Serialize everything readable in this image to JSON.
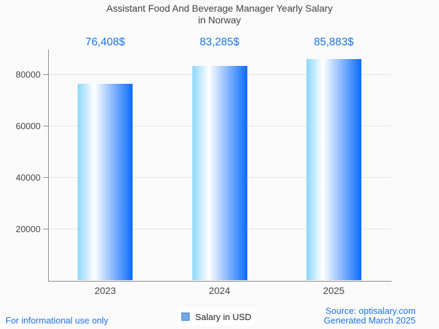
{
  "page": {
    "background": "#fafafa"
  },
  "chart_data": {
    "type": "bar",
    "title": "Assistant Food And Beverage Manager Yearly Salary in Norway",
    "title_lines": [
      "Assistant Food And Beverage Manager Yearly Salary",
      "in Norway"
    ],
    "categories": [
      "2023",
      "2024",
      "2025"
    ],
    "series": [
      {
        "name": "Salary in USD",
        "values": [
          76408,
          83285,
          85883
        ]
      }
    ],
    "values": [
      76408,
      83285,
      85883
    ],
    "value_labels": [
      "76,408$",
      "83,285$",
      "85,883$"
    ],
    "xlabel": "",
    "ylabel": "",
    "ylim": [
      0,
      89733
    ],
    "yticks": [
      20000,
      40000,
      60000,
      80000
    ],
    "ytick_labels": [
      "20000",
      "40000",
      "60000",
      "80000"
    ],
    "grid": true,
    "legend": [
      "Salary in USD"
    ],
    "legend_position": "bottom"
  },
  "legend": {
    "label": "Salary in USD"
  },
  "footer": {
    "disclaimer": "For informational use only",
    "source": "Source: optisalary.com",
    "generated": "Generated March 2025"
  },
  "colors": {
    "background": "#fafafa",
    "accent_blue": "#1a73e8",
    "title_text": "#3f3f3f",
    "axis_text": "#454545",
    "axis_line": "#8a8a8a",
    "gridline": "#e4e4e4",
    "bar_gradient_left": "#8bd7fa",
    "bar_gradient_mid": "#ffffff",
    "bar_gradient_right": "#0b6cfc",
    "legend_marker_fill": "#6fa8eb",
    "legend_marker_border": "#4a84c9"
  }
}
